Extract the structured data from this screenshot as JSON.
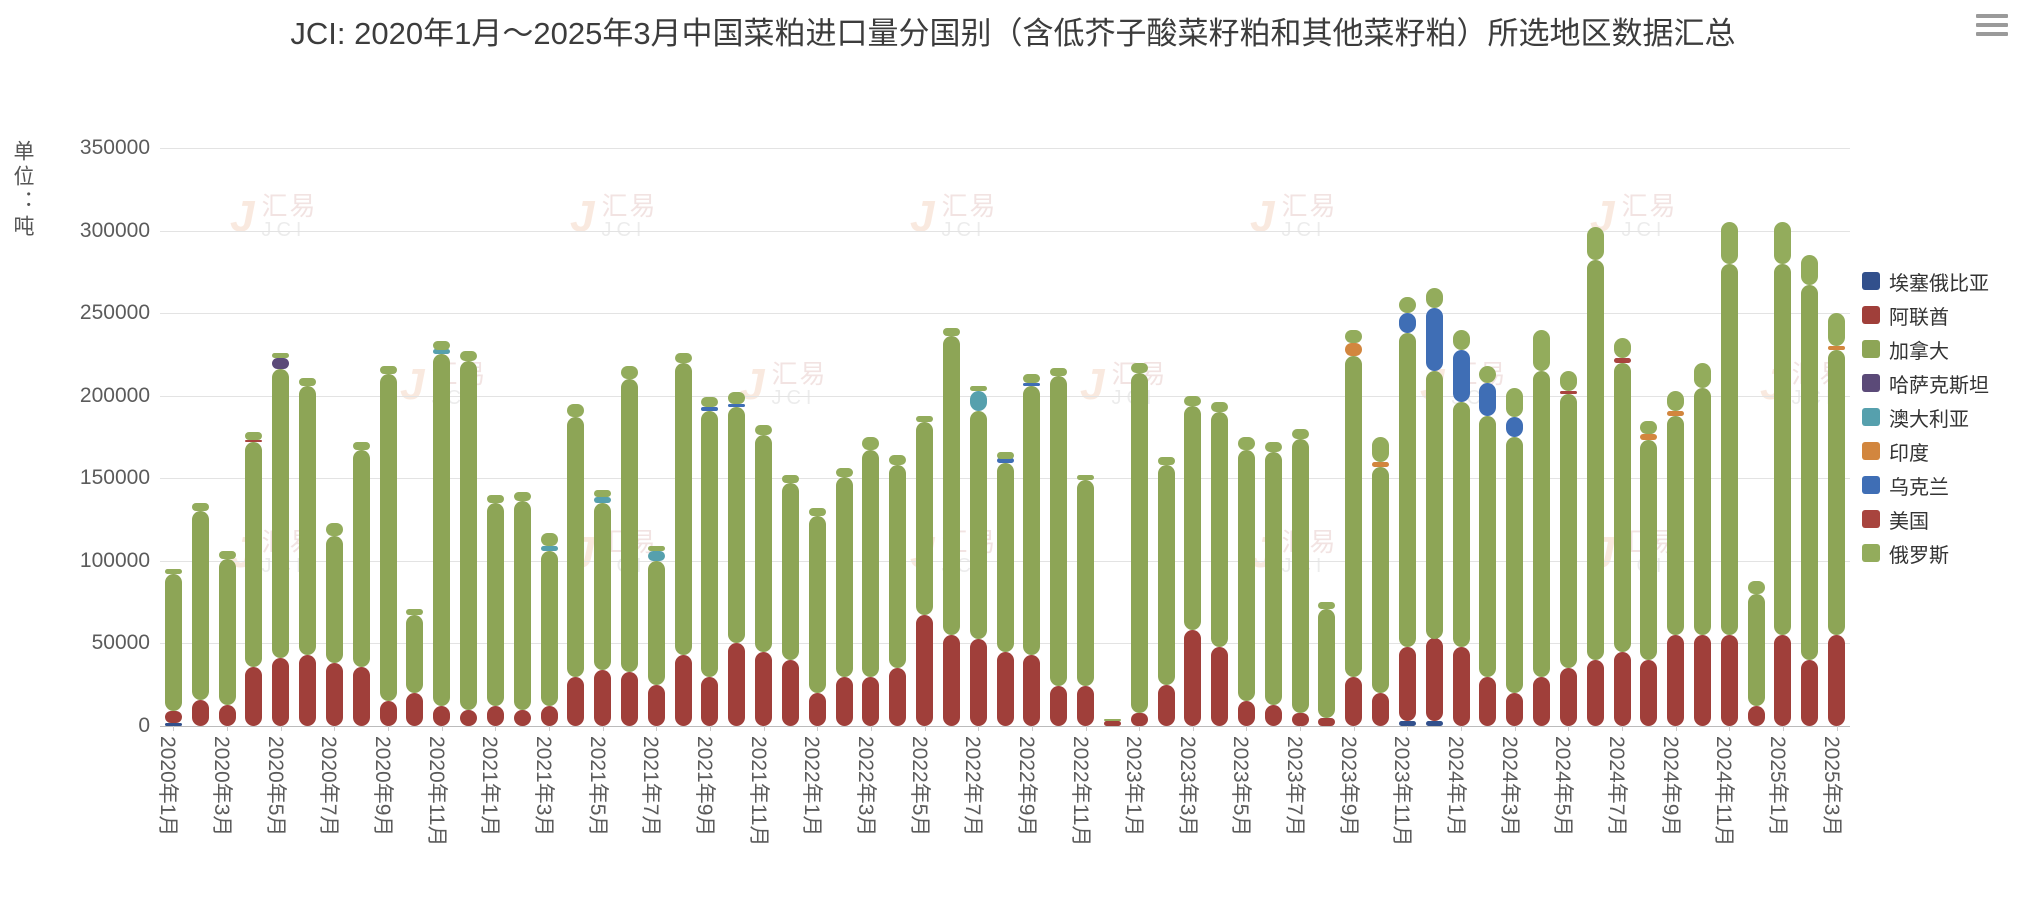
{
  "title": "JCI: 2020年1月～2025年3月中国菜粕进口量分国别（含低芥子酸菜籽粕和其他菜籽粕）所选地区数据汇总",
  "y_axis_name": "单位：吨",
  "watermark": {
    "cn": "汇易",
    "en": "JCI"
  },
  "chart_data": {
    "type": "bar",
    "stacked": true,
    "title": "JCI: 2020年1月～2025年3月中国菜粕进口量分国别（含低芥子酸菜籽粕和其他菜籽粕）所选地区数据汇总",
    "ylabel": "单位：吨",
    "ylim": [
      0,
      350000
    ],
    "ytick_step": 50000,
    "grid": true,
    "legend_position": "right",
    "categories": [
      "2020年1月",
      "2020年2月",
      "2020年3月",
      "2020年4月",
      "2020年5月",
      "2020年6月",
      "2020年7月",
      "2020年8月",
      "2020年9月",
      "2020年10月",
      "2020年11月",
      "2020年12月",
      "2021年1月",
      "2021年2月",
      "2021年3月",
      "2021年4月",
      "2021年5月",
      "2021年6月",
      "2021年7月",
      "2021年8月",
      "2021年9月",
      "2021年10月",
      "2021年11月",
      "2021年12月",
      "2022年1月",
      "2022年2月",
      "2022年3月",
      "2022年4月",
      "2022年5月",
      "2022年6月",
      "2022年7月",
      "2022年8月",
      "2022年9月",
      "2022年10月",
      "2022年11月",
      "2022年12月",
      "2023年1月",
      "2023年2月",
      "2023年3月",
      "2023年4月",
      "2023年5月",
      "2023年6月",
      "2023年7月",
      "2023年8月",
      "2023年9月",
      "2023年10月",
      "2023年11月",
      "2023年12月",
      "2024年1月",
      "2024年2月",
      "2024年3月",
      "2024年4月",
      "2024年5月",
      "2024年6月",
      "2024年7月",
      "2024年8月",
      "2024年9月",
      "2024年10月",
      "2024年11月",
      "2024年12月",
      "2025年1月",
      "2025年2月",
      "2025年3月"
    ],
    "series": [
      {
        "name": "埃塞俄比亚",
        "color": "#32508c",
        "values": [
          2000,
          0,
          0,
          0,
          0,
          0,
          0,
          0,
          0,
          0,
          0,
          0,
          0,
          0,
          0,
          0,
          0,
          0,
          0,
          0,
          0,
          0,
          0,
          0,
          0,
          0,
          0,
          0,
          0,
          0,
          0,
          0,
          0,
          0,
          0,
          0,
          0,
          0,
          0,
          0,
          0,
          0,
          0,
          0,
          0,
          0,
          3000,
          3000,
          0,
          0,
          0,
          0,
          0,
          0,
          0,
          0,
          0,
          0,
          0,
          0,
          0,
          0,
          0
        ]
      },
      {
        "name": "阿联酋",
        "color": "#a03f3a",
        "values": [
          7000,
          16000,
          13000,
          36000,
          41000,
          43000,
          38000,
          36000,
          15000,
          20000,
          12000,
          10000,
          12000,
          10000,
          12000,
          30000,
          34000,
          33000,
          25000,
          43000,
          30000,
          50000,
          45000,
          40000,
          20000,
          30000,
          30000,
          35000,
          67000,
          55000,
          53000,
          45000,
          43000,
          24000,
          24000,
          3000,
          8000,
          25000,
          58000,
          48000,
          15000,
          13000,
          8000,
          5000,
          30000,
          20000,
          45000,
          50000,
          48000,
          30000,
          20000,
          30000,
          35000,
          40000,
          45000,
          40000,
          55000,
          55000,
          55000,
          12000,
          55000,
          40000,
          55000
        ]
      },
      {
        "name": "加拿大",
        "color": "#8da556",
        "values": [
          83000,
          114000,
          88000,
          136000,
          175000,
          163000,
          77000,
          131000,
          198000,
          47000,
          213000,
          211000,
          123000,
          126000,
          94000,
          157000,
          101000,
          177000,
          75000,
          177000,
          161000,
          143000,
          131000,
          107000,
          107000,
          121000,
          137000,
          123000,
          117000,
          181000,
          138000,
          114000,
          163000,
          188000,
          125000,
          0,
          206000,
          133000,
          136000,
          142000,
          152000,
          153000,
          166000,
          66000,
          194000,
          137000,
          190000,
          162000,
          148000,
          158000,
          155000,
          185000,
          166000,
          242000,
          175000,
          133000,
          133000,
          150000,
          225000,
          68000,
          225000,
          227000,
          173000
        ]
      },
      {
        "name": "哈萨克斯坦",
        "color": "#5b4a78",
        "values": [
          0,
          0,
          0,
          0,
          7000,
          0,
          0,
          0,
          0,
          0,
          0,
          0,
          0,
          0,
          0,
          0,
          0,
          0,
          0,
          0,
          0,
          0,
          0,
          0,
          0,
          0,
          0,
          0,
          0,
          0,
          0,
          0,
          0,
          0,
          0,
          0,
          0,
          0,
          0,
          0,
          0,
          0,
          0,
          0,
          0,
          0,
          0,
          0,
          0,
          0,
          0,
          0,
          0,
          0,
          0,
          0,
          0,
          0,
          0,
          0,
          0,
          0,
          0
        ]
      },
      {
        "name": "澳大利亚",
        "color": "#56a0ad",
        "values": [
          0,
          0,
          0,
          0,
          0,
          0,
          0,
          0,
          0,
          0,
          3000,
          0,
          0,
          0,
          3000,
          0,
          4000,
          0,
          6000,
          0,
          0,
          0,
          0,
          0,
          0,
          0,
          0,
          0,
          0,
          0,
          12000,
          0,
          0,
          0,
          0,
          0,
          0,
          0,
          0,
          0,
          0,
          0,
          0,
          0,
          0,
          0,
          0,
          0,
          0,
          0,
          0,
          0,
          0,
          0,
          0,
          0,
          0,
          0,
          0,
          0,
          0,
          0,
          0
        ]
      },
      {
        "name": "印度",
        "color": "#d2863e",
        "values": [
          0,
          0,
          0,
          0,
          0,
          0,
          0,
          0,
          0,
          0,
          0,
          0,
          0,
          0,
          0,
          0,
          0,
          0,
          0,
          0,
          0,
          0,
          0,
          0,
          0,
          0,
          0,
          0,
          0,
          0,
          0,
          0,
          0,
          0,
          0,
          0,
          0,
          0,
          0,
          0,
          0,
          0,
          0,
          0,
          8000,
          3000,
          0,
          0,
          0,
          0,
          0,
          0,
          0,
          0,
          0,
          4000,
          3000,
          0,
          0,
          0,
          0,
          0,
          2000
        ]
      },
      {
        "name": "乌克兰",
        "color": "#3f6eb5",
        "values": [
          0,
          0,
          0,
          0,
          0,
          0,
          0,
          0,
          0,
          0,
          0,
          0,
          0,
          0,
          0,
          0,
          0,
          0,
          0,
          0,
          2000,
          2000,
          0,
          0,
          0,
          0,
          0,
          0,
          0,
          0,
          0,
          3000,
          2000,
          0,
          0,
          0,
          0,
          0,
          0,
          0,
          0,
          0,
          0,
          0,
          0,
          0,
          12000,
          38000,
          32000,
          20000,
          12000,
          0,
          0,
          0,
          0,
          0,
          0,
          0,
          0,
          0,
          0,
          0,
          0
        ]
      },
      {
        "name": "美国",
        "color": "#a8443e",
        "values": [
          0,
          0,
          0,
          1000,
          0,
          0,
          0,
          0,
          0,
          0,
          0,
          0,
          0,
          0,
          0,
          0,
          0,
          0,
          0,
          0,
          0,
          0,
          0,
          0,
          0,
          0,
          0,
          0,
          0,
          0,
          0,
          0,
          0,
          0,
          0,
          0,
          0,
          0,
          0,
          0,
          0,
          0,
          0,
          0,
          0,
          0,
          0,
          0,
          0,
          0,
          0,
          0,
          2000,
          0,
          3000,
          0,
          0,
          0,
          0,
          0,
          0,
          0,
          0
        ]
      },
      {
        "name": "俄罗斯",
        "color": "#93ac5c",
        "values": [
          3000,
          5000,
          5000,
          5000,
          3000,
          5000,
          8000,
          5000,
          5000,
          4000,
          5000,
          6000,
          5000,
          6000,
          8000,
          8000,
          4000,
          8000,
          3000,
          6000,
          6000,
          7000,
          6000,
          5000,
          5000,
          5000,
          8000,
          6000,
          4000,
          5000,
          3000,
          4000,
          5000,
          5000,
          3000,
          1000,
          6000,
          5000,
          6000,
          6000,
          8000,
          6000,
          6000,
          4000,
          8000,
          15000,
          10000,
          12000,
          12000,
          10000,
          18000,
          25000,
          12000,
          20000,
          12000,
          8000,
          12000,
          15000,
          25000,
          8000,
          25000,
          18000,
          20000
        ]
      }
    ]
  }
}
